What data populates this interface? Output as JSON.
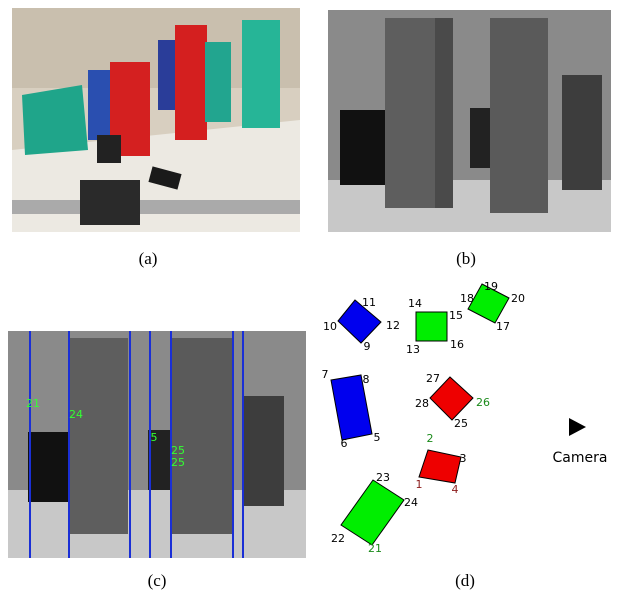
{
  "panels": [
    {
      "caption": "(a)"
    },
    {
      "caption": "(b)"
    },
    {
      "caption": "(c)",
      "labels": [
        "21",
        "24",
        "5",
        "25",
        "25"
      ]
    },
    {
      "caption": "(d)",
      "labels": [
        "11",
        "10",
        "12",
        "9",
        "14",
        "15",
        "13",
        "16",
        "19",
        "18",
        "20",
        "17",
        "7",
        "8",
        "6",
        "5",
        "27",
        "28",
        "26",
        "25",
        "2",
        "3",
        "1",
        "4",
        "23",
        "24",
        "22",
        "21"
      ],
      "camera": "Camera"
    }
  ]
}
